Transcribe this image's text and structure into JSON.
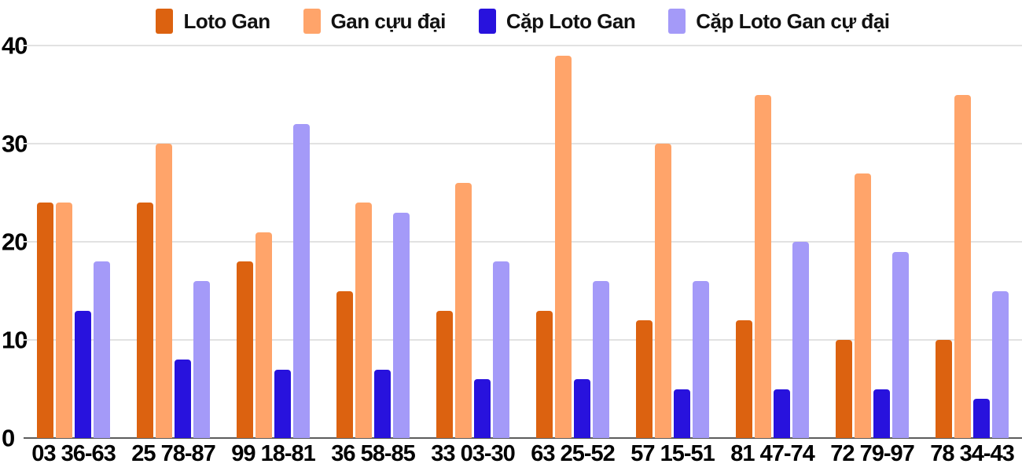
{
  "chart_data": {
    "type": "bar",
    "title": "",
    "xlabel": "",
    "ylabel": "",
    "categories": [
      "03 36-63",
      "25 78-87",
      "99 18-81",
      "36 58-85",
      "33 03-30",
      "63 25-52",
      "57 15-51",
      "81 47-74",
      "72 79-97",
      "78 34-43"
    ],
    "series": [
      {
        "name": "Loto Gan",
        "color": "#dc6210",
        "values": [
          24,
          24,
          18,
          15,
          13,
          13,
          12,
          12,
          10,
          10
        ]
      },
      {
        "name": "Gan cựu đại",
        "color": "#ffa46a",
        "values": [
          24,
          30,
          21,
          24,
          26,
          39,
          30,
          35,
          27,
          35
        ]
      },
      {
        "name": "Cặp Loto Gan",
        "color": "#2812dd",
        "values": [
          13,
          8,
          7,
          7,
          6,
          6,
          5,
          5,
          5,
          4
        ]
      },
      {
        "name": "Cặp Loto Gan cự đại",
        "color": "#a49af8",
        "values": [
          18,
          16,
          32,
          23,
          18,
          16,
          16,
          20,
          19,
          15
        ]
      }
    ],
    "ylim": [
      0,
      40
    ],
    "yticks": [
      0,
      10,
      20,
      30,
      40
    ],
    "grid": true,
    "gridline_color": "#e2e2e2",
    "baseline_color": "#5c5c5c",
    "legend_position": "top"
  }
}
